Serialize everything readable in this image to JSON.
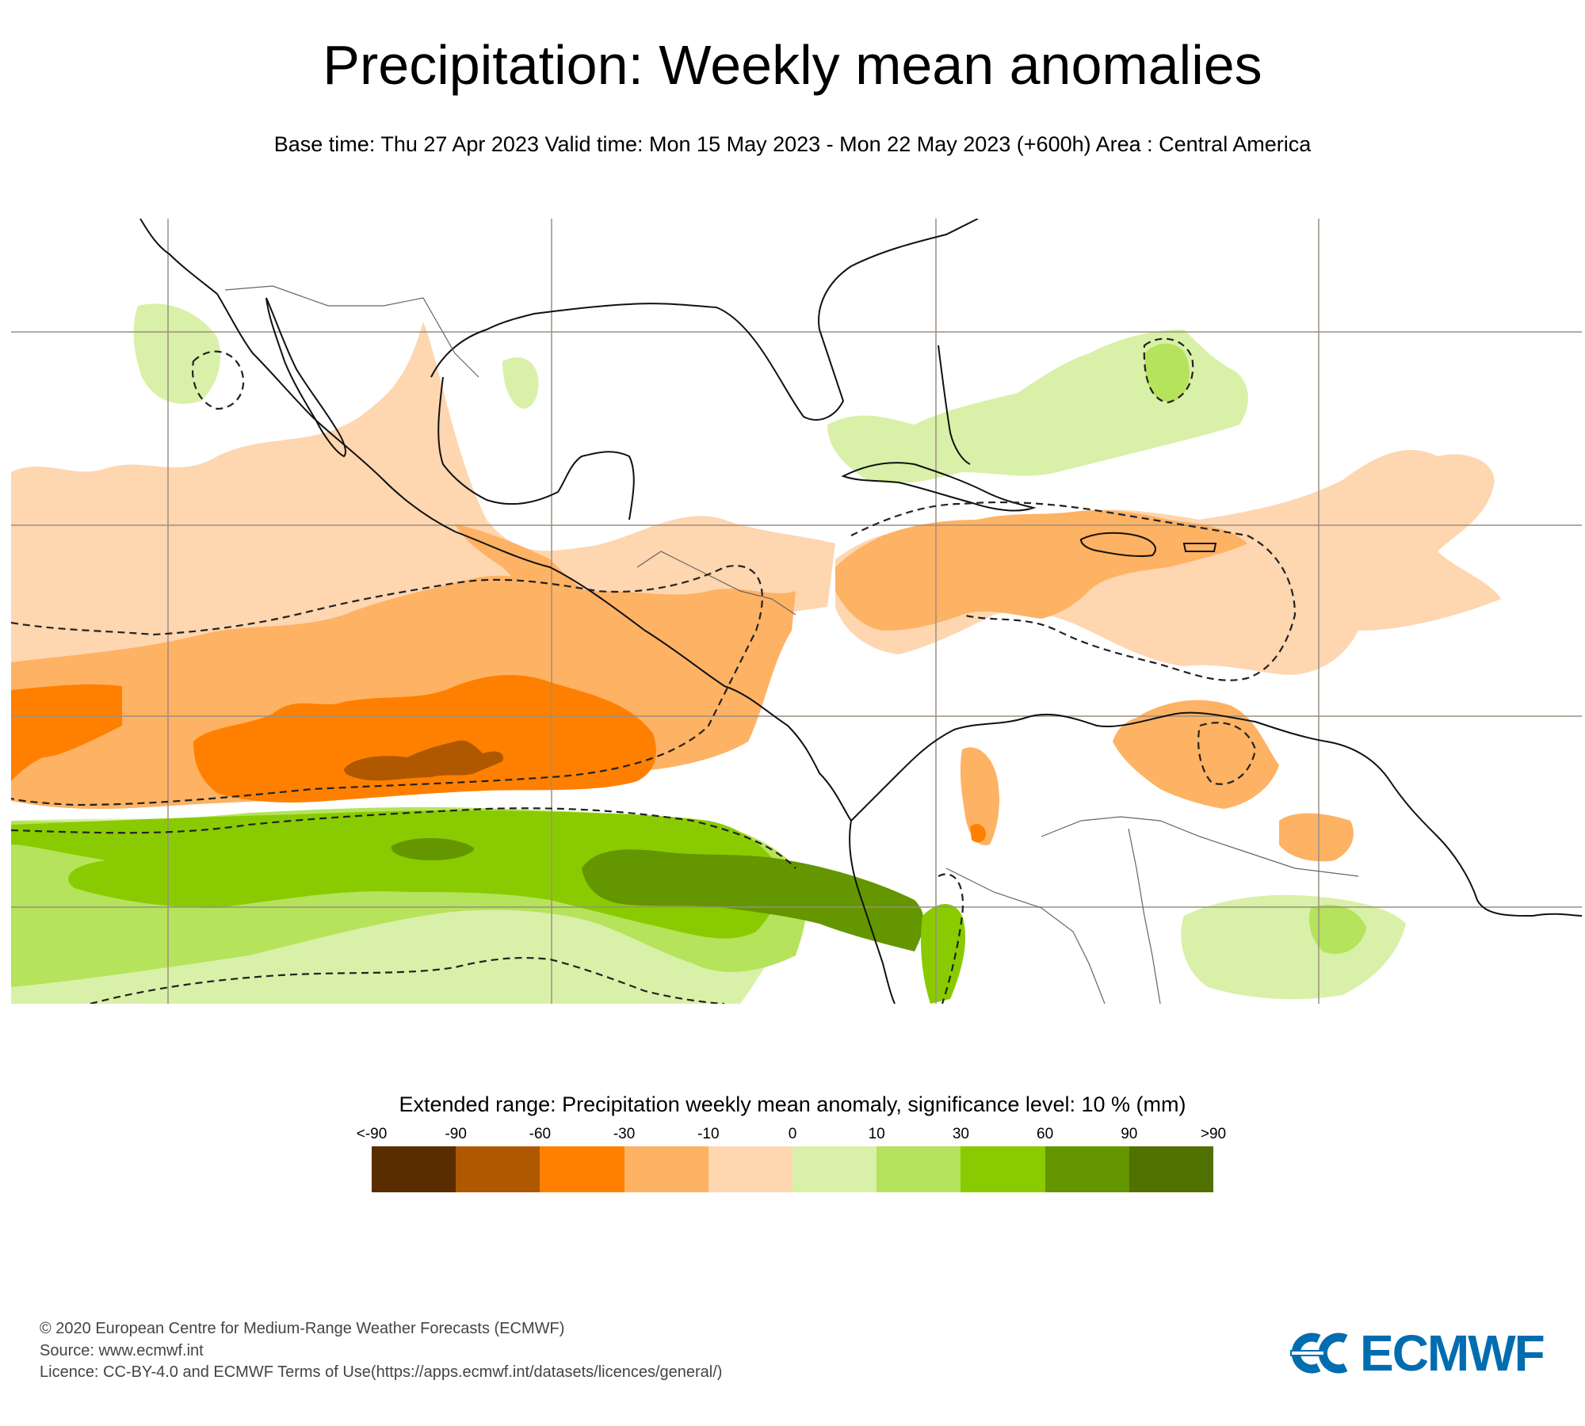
{
  "header": {
    "title": "Precipitation: Weekly mean anomalies",
    "subtitle": "Base time: Thu 27 Apr 2023 Valid time: Mon 15 May 2023 - Mon 22 May 2023 (+600h) Area : Central America"
  },
  "map": {
    "area": "Central America",
    "features": [
      "coastlines",
      "country-borders",
      "graticule",
      "significance-contours-dashed"
    ],
    "colors": {
      "land_outline": "#000000",
      "border": "#666666",
      "graticule": "#9a8f80",
      "background": "#ffffff"
    },
    "anomaly_regions": [
      {
        "name": "east-pacific-dry-band",
        "category": "-60 to -30",
        "max_category": "<-90"
      },
      {
        "name": "east-pacific-wet-band",
        "category": "60 to 90",
        "max_category": "60 to 90"
      },
      {
        "name": "caribbean-dry-area",
        "category": "-30 to -10"
      },
      {
        "name": "west-atlantic-wet-area",
        "category": "10 to 30"
      },
      {
        "name": "amazon-wet-area",
        "category": "0 to 10"
      }
    ]
  },
  "legend": {
    "title": "Extended range: Precipitation weekly mean anomaly, significance level: 10 % (mm)",
    "labels": [
      "<-90",
      "-90",
      "-60",
      "-30",
      "-10",
      "0",
      "10",
      "30",
      "60",
      "90",
      ">90"
    ],
    "colors": [
      "#5a2d00",
      "#b05800",
      "#ff8000",
      "#feb264",
      "#fed6b0",
      "#d9f0a8",
      "#b5e35b",
      "#89cb00",
      "#649600",
      "#507000"
    ]
  },
  "chart_data": {
    "type": "heatmap",
    "title": "Precipitation: Weekly mean anomalies",
    "subtitle": "Base time: Thu 27 Apr 2023 Valid time: Mon 15 May 2023 - Mon 22 May 2023 (+600h) Area : Central America",
    "colorbar": {
      "label": "Extended range: Precipitation weekly mean anomaly, significance level: 10 % (mm)",
      "units": "mm",
      "bins": [
        {
          "range": "<-90",
          "color": "#5a2d00"
        },
        {
          "range": "-90 to -60",
          "color": "#b05800"
        },
        {
          "range": "-60 to -30",
          "color": "#ff8000"
        },
        {
          "range": "-30 to -10",
          "color": "#feb264"
        },
        {
          "range": "-10 to 0",
          "color": "#fed6b0"
        },
        {
          "range": "0 to 10",
          "color": "#d9f0a8"
        },
        {
          "range": "10 to 30",
          "color": "#b5e35b"
        },
        {
          "range": "30 to 60",
          "color": "#89cb00"
        },
        {
          "range": "60 to 90",
          "color": "#649600"
        },
        {
          "range": ">90",
          "color": "#507000"
        }
      ],
      "tick_labels": [
        "<-90",
        "-90",
        "-60",
        "-30",
        "-10",
        "0",
        "10",
        "30",
        "60",
        "90",
        ">90"
      ]
    },
    "significance_level_percent": 10,
    "legend_position": "bottom-center"
  },
  "footer": {
    "copyright": "© 2020 European Centre for Medium-Range Weather Forecasts (ECMWF)",
    "source": "Source: www.ecmwf.int",
    "licence": "Licence: CC-BY-4.0 and ECMWF Terms of Use(https://apps.ecmwf.int/datasets/licences/general/)"
  },
  "logo": {
    "text": "ECMWF",
    "color": "#006db0"
  }
}
